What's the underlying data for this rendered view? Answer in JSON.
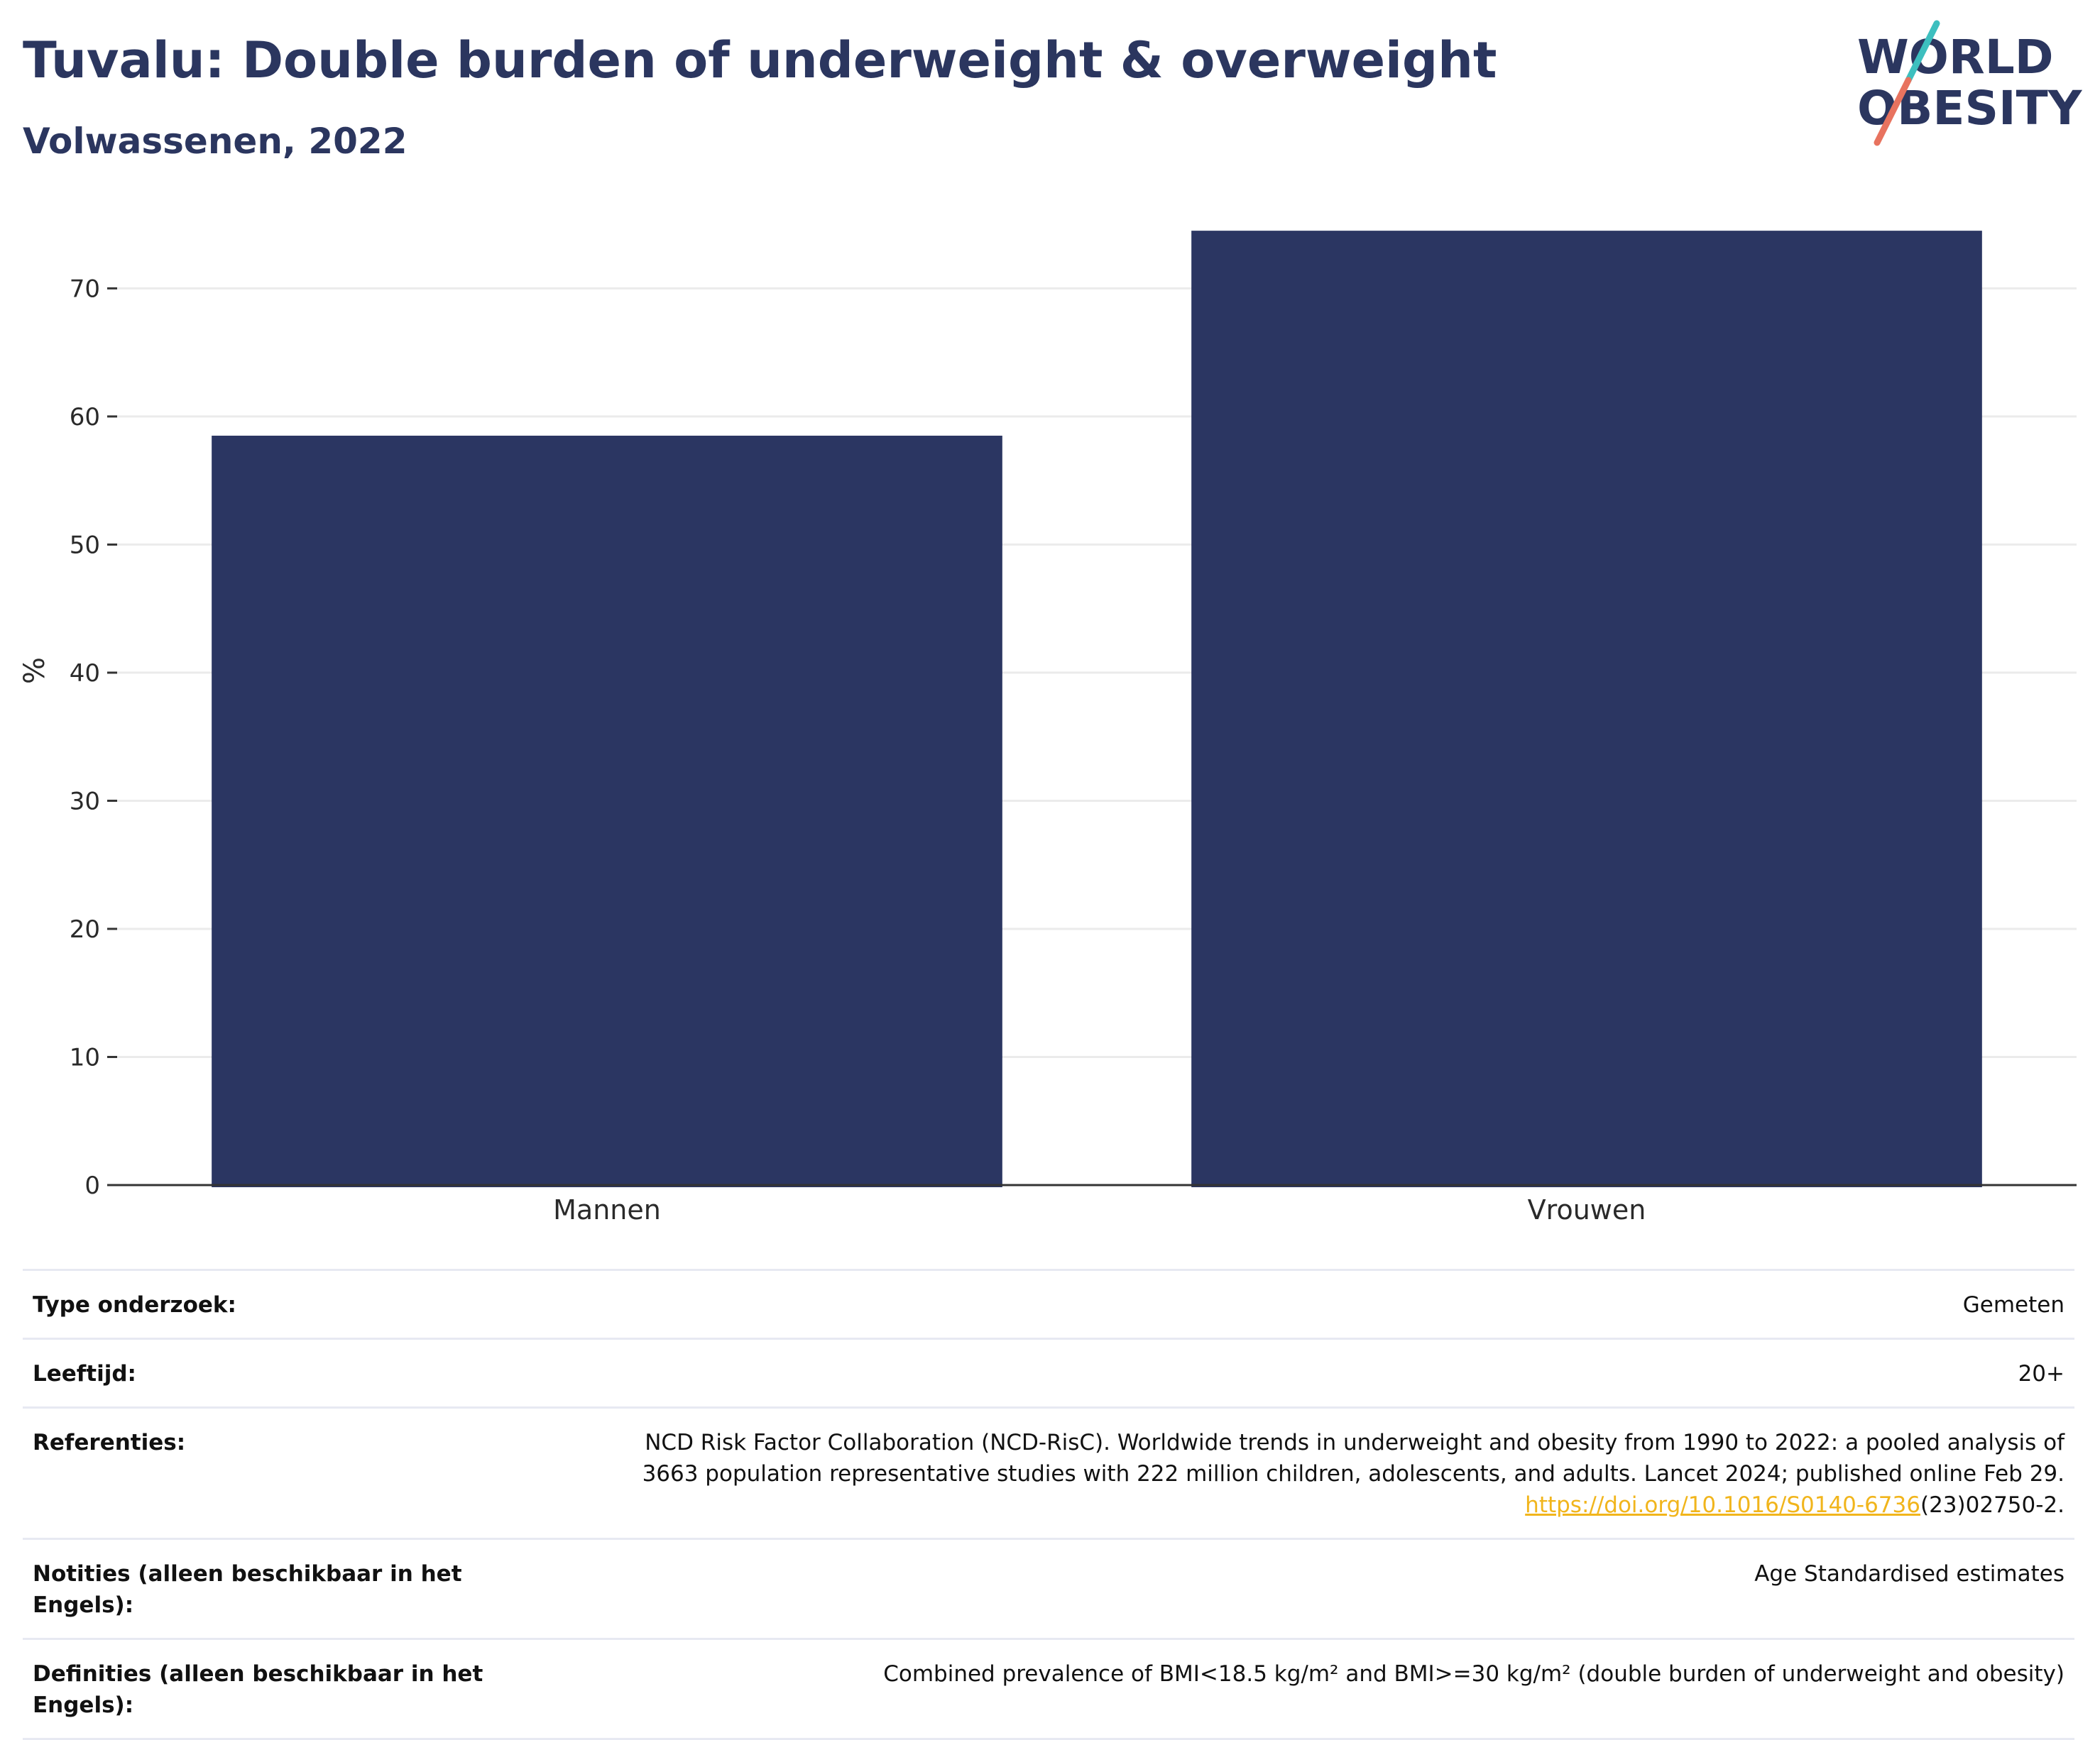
{
  "header": {
    "title": "Tuvalu: Double burden of underweight & overweight",
    "subtitle": "Volwassenen, 2022"
  },
  "logo": {
    "line1": "WORLD",
    "line2": "OBESITY"
  },
  "colors": {
    "bar": "#2b3662",
    "logo_navy": "#2b365f",
    "logo_teal": "#3dbfbf",
    "logo_coral": "#e8735f",
    "link": "#f1b51c"
  },
  "chart_data": {
    "type": "bar",
    "categories": [
      "Mannen",
      "Vrouwen"
    ],
    "values": [
      58.5,
      74.5
    ],
    "ylabel": "%",
    "ylim": [
      0,
      77
    ],
    "yticks": [
      0,
      10,
      20,
      30,
      40,
      50,
      60,
      70
    ],
    "grid": true
  },
  "meta": {
    "rows": [
      {
        "key": "Type onderzoek:",
        "value": "Gemeten"
      },
      {
        "key": "Leeftijd:",
        "value": "20+"
      },
      {
        "key": "Referenties:",
        "value_line1": "NCD Risk Factor Collaboration (NCD-RisC). Worldwide trends in underweight and obesity from 1990 to 2022: a pooled analysis of",
        "value_line2": "3663 population representative studies with 222 million children, adolescents, and adults. Lancet 2024; published online Feb 29.",
        "link_text": "https://doi.org/10.1016/S0140-6736",
        "link_suffix": "(23)02750-2."
      },
      {
        "key_line1": "Notities (alleen beschikbaar in het",
        "key_line2": "Engels):",
        "value": "Age Standardised estimates"
      },
      {
        "key_line1": "Definities (alleen beschikbaar in het",
        "key_line2": "Engels):",
        "value": "Combined prevalence of BMI<18.5 kg/m² and BMI>=30 kg/m² (double burden of underweight and obesity)"
      }
    ]
  }
}
